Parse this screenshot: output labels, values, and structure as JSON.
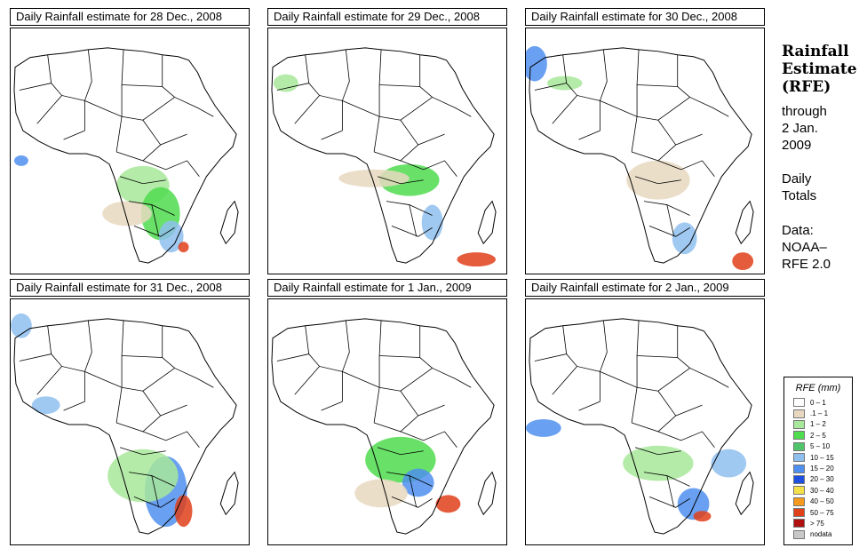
{
  "panels": [
    {
      "title": "Daily Rainfall estimate for  28 Dec., 2008"
    },
    {
      "title": "Daily Rainfall estimate for  29 Dec., 2008"
    },
    {
      "title": "Daily Rainfall estimate for  30 Dec., 2008"
    },
    {
      "title": "Daily Rainfall estimate for  31 Dec., 2008"
    },
    {
      "title": "Daily Rainfall estimate for  1 Jan., 2009"
    },
    {
      "title": "Daily Rainfall estimate for  2 Jan., 2009"
    }
  ],
  "sidebar": {
    "title_line1": "Rainfall",
    "title_line2": "Estimate",
    "title_line3": "(RFE)",
    "through": "through",
    "date_line1": "2 Jan.",
    "date_line2": "2009",
    "daily": "Daily",
    "totals": "Totals",
    "data_label": "Data:",
    "source_line1": "NOAA–",
    "source_line2": "RFE 2.0"
  },
  "legend": {
    "title": "RFE (mm)",
    "items": [
      {
        "label": "0 – 1",
        "color": "#ffffff"
      },
      {
        "label": ".1 – 1",
        "color": "#e8d8bf"
      },
      {
        "label": "1 – 2",
        "color": "#a8e89a"
      },
      {
        "label": "2 – 5",
        "color": "#4fdc4f"
      },
      {
        "label": "5 – 10",
        "color": "#4fc46a"
      },
      {
        "label": "10 – 15",
        "color": "#8fbfef"
      },
      {
        "label": "15 – 20",
        "color": "#4f8fef"
      },
      {
        "label": "20 – 30",
        "color": "#1f4fdf"
      },
      {
        "label": "30 – 40",
        "color": "#f4e04a"
      },
      {
        "label": "40 – 50",
        "color": "#f59a1f"
      },
      {
        "label": "50 – 75",
        "color": "#e0401a"
      },
      {
        "label": "> 75",
        "color": "#b01010"
      },
      {
        "label": "nodata",
        "color": "#c8c8c8"
      }
    ]
  }
}
